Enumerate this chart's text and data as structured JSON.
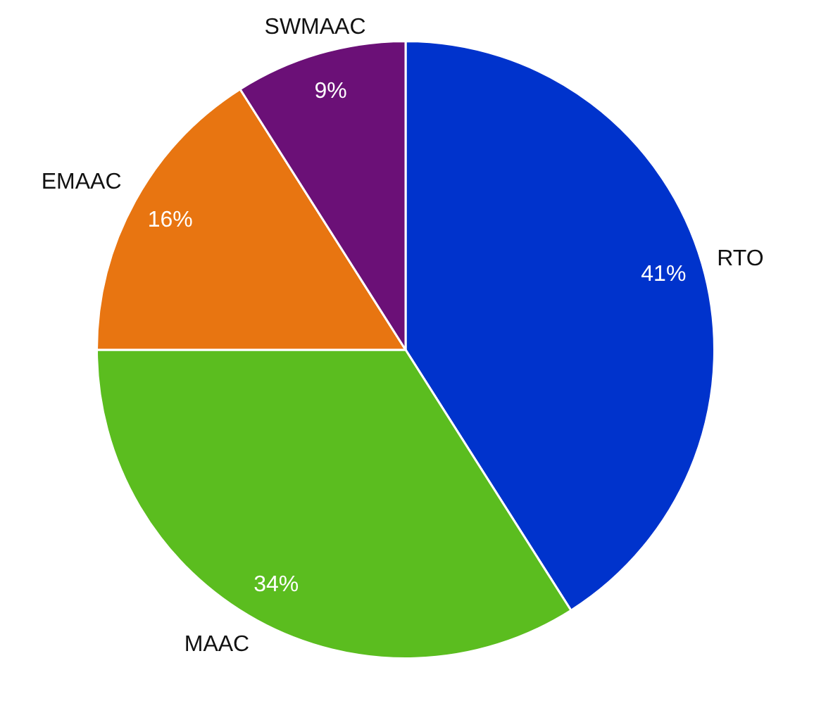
{
  "chart_data": {
    "type": "pie",
    "categories": [
      "RTO",
      "MAAC",
      "EMAAC",
      "SWMAAC"
    ],
    "values": [
      41,
      34,
      16,
      9
    ],
    "value_labels": [
      "41%",
      "34%",
      "16%",
      "9%"
    ],
    "colors": [
      "#0033cc",
      "#5bbd1f",
      "#e87511",
      "#6b1077"
    ],
    "legend": false
  }
}
